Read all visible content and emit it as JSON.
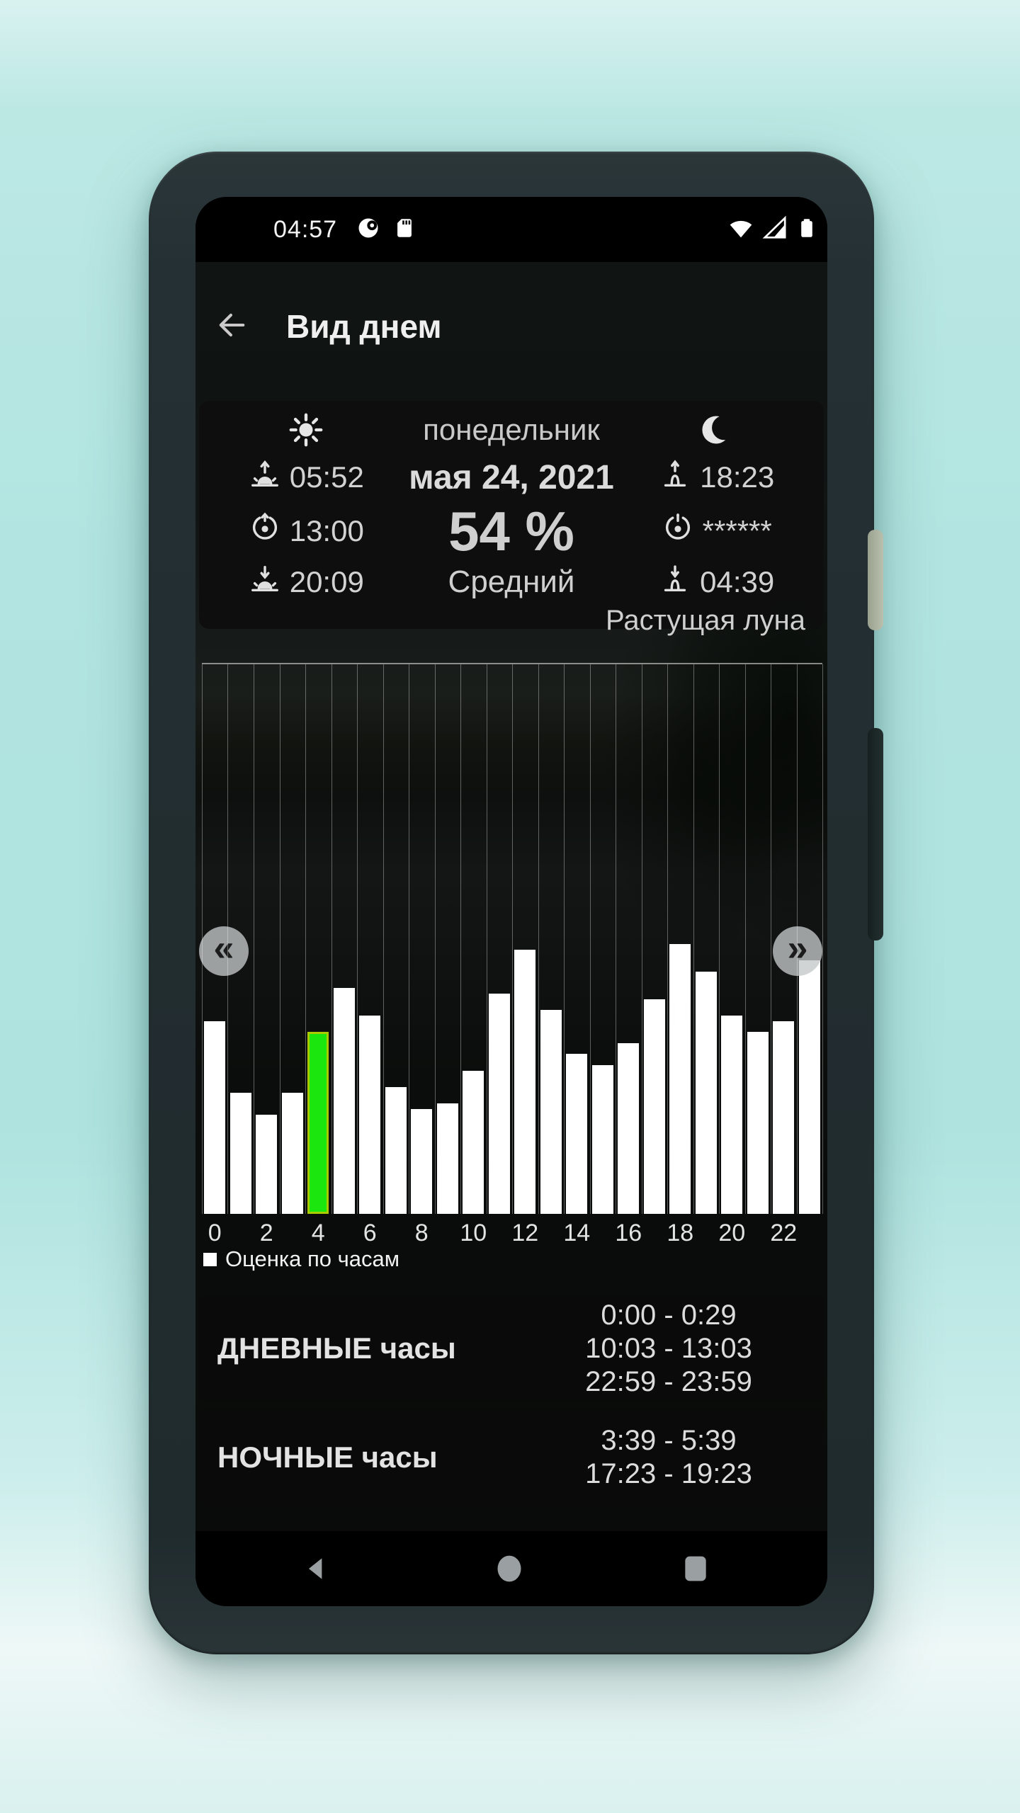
{
  "status_bar": {
    "time": "04:57",
    "left_icons": [
      "data-saver-icon",
      "sd-card-icon"
    ],
    "right_icons": [
      "wifi-icon",
      "cell-signal-icon",
      "battery-icon"
    ]
  },
  "header": {
    "title": "Вид днем"
  },
  "summary_card": {
    "day_name": "понедельник",
    "date": "мая 24, 2021",
    "score": "54 %",
    "score_label": "Средний",
    "sun": {
      "rise": "05:52",
      "zenith": "13:00",
      "set": "20:09"
    },
    "moon": {
      "rise": "18:23",
      "zenith": "******",
      "set": "04:39",
      "phase": "Растущая луна"
    }
  },
  "chart_data": {
    "type": "bar",
    "title": "Оценка по часам",
    "x": [
      0,
      1,
      2,
      3,
      4,
      5,
      6,
      7,
      8,
      9,
      10,
      11,
      12,
      13,
      14,
      15,
      16,
      17,
      18,
      19,
      20,
      21,
      22,
      23
    ],
    "values": [
      35,
      22,
      18,
      22,
      33,
      41,
      36,
      23,
      19,
      20,
      26,
      40,
      48,
      37,
      29,
      27,
      31,
      39,
      49,
      44,
      36,
      33,
      35,
      46
    ],
    "highlight_hour": 4,
    "xticks": [
      0,
      2,
      4,
      6,
      8,
      10,
      12,
      14,
      16,
      18,
      20,
      22
    ],
    "ylim": [
      0,
      100
    ],
    "grid": true,
    "legend": "Оценка по часам",
    "legend_position": "bottom-left",
    "bar_color": "#ffffff",
    "highlight_color": "#1be60d",
    "highlight_border_color": "#a9cb00",
    "grid_color": "rgba(255,255,255,0.34)"
  },
  "chart_nav": {
    "prev": "«",
    "next": "»"
  },
  "sections": [
    {
      "title": "ДНЕВНЫЕ часы",
      "ranges": [
        "0:00 - 0:29",
        "10:03 - 13:03",
        "22:59 - 23:59"
      ]
    },
    {
      "title": "НОЧНЫЕ часы",
      "ranges": [
        "3:39 - 5:39",
        "17:23 - 19:23"
      ]
    }
  ],
  "nav_bar": {
    "icons": [
      "back-triangle-icon",
      "home-circle-icon",
      "recents-square-icon"
    ]
  },
  "colors": {
    "page_background": "#b2e5e1",
    "phone_frame": "#222d30",
    "screen_background": "#0d100e",
    "card_background": "#0e0e0e",
    "accent_green": "#1be60d",
    "accent_green_border": "#a9cb00",
    "text_primary": "#efefef",
    "text_secondary": "#cfcfcf"
  }
}
